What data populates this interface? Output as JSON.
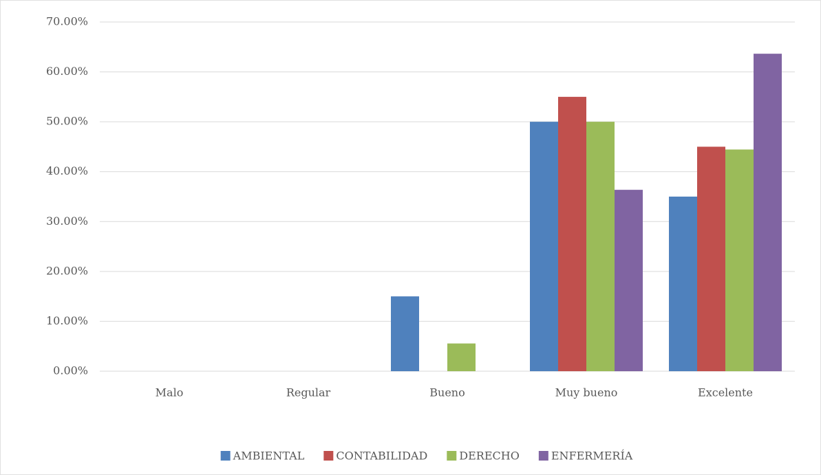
{
  "chart_data": {
    "type": "bar",
    "categories": [
      "Malo",
      "Regular",
      "Bueno",
      "Muy bueno",
      "Excelente"
    ],
    "series": [
      {
        "name": "AMBIENTAL",
        "color": "#4f81bd",
        "values": [
          0,
          0,
          15,
          50,
          35
        ]
      },
      {
        "name": "CONTABILIDAD",
        "color": "#c0504d",
        "values": [
          0,
          0,
          0,
          55,
          45
        ]
      },
      {
        "name": "DERECHO",
        "color": "#9bbb59",
        "values": [
          0,
          0,
          5.56,
          50,
          44.44
        ]
      },
      {
        "name": "ENFERMERÍA",
        "color": "#8064a2",
        "values": [
          0,
          0,
          0,
          36.36,
          63.64
        ]
      }
    ],
    "ylim": [
      0,
      70
    ],
    "yticks": [
      {
        "value": 0,
        "label": "0.00%"
      },
      {
        "value": 10,
        "label": "10.00%"
      },
      {
        "value": 20,
        "label": "20.00%"
      },
      {
        "value": 30,
        "label": "30.00%"
      },
      {
        "value": 40,
        "label": "40.00%"
      },
      {
        "value": 50,
        "label": "50.00%"
      },
      {
        "value": 60,
        "label": "60.00%"
      },
      {
        "value": 70,
        "label": "70.00%"
      }
    ],
    "grid": true,
    "legend": "bottom"
  }
}
